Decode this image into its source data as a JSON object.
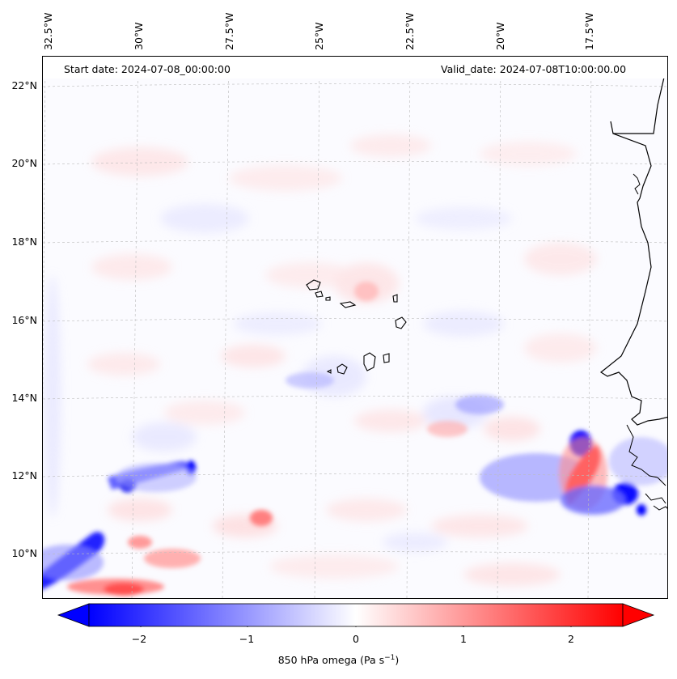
{
  "map": {
    "start_date": "Start date: 2024-07-08_00:00:00",
    "valid_date": "Valid_date: 2024-07-08T10:00:00.00",
    "longitude_labels": [
      "32.5°W",
      "30°W",
      "27.5°W",
      "25°W",
      "22.5°W",
      "20°W",
      "17.5°W"
    ],
    "latitude_labels": [
      "22°N",
      "20°N",
      "18°N",
      "16°N",
      "14°N",
      "12°N",
      "10°N"
    ],
    "colorbar": {
      "label_main": "850 hPa omega (Pa s",
      "label_exp": "−1",
      "label_close": ")",
      "ticks": [
        "−2",
        "−1",
        "0",
        "1",
        "2"
      ],
      "tick_values": [
        -2,
        -1,
        0,
        1,
        2
      ],
      "vmin": -2.5,
      "vmax": 2.5,
      "cmap": "bwr",
      "colors": {
        "negative": "#0000ff",
        "zero": "#ffffff",
        "positive": "#ff0000"
      }
    },
    "features": [
      "coastline",
      "cape-verde-islands",
      "omega-contours",
      "graticule"
    ]
  }
}
